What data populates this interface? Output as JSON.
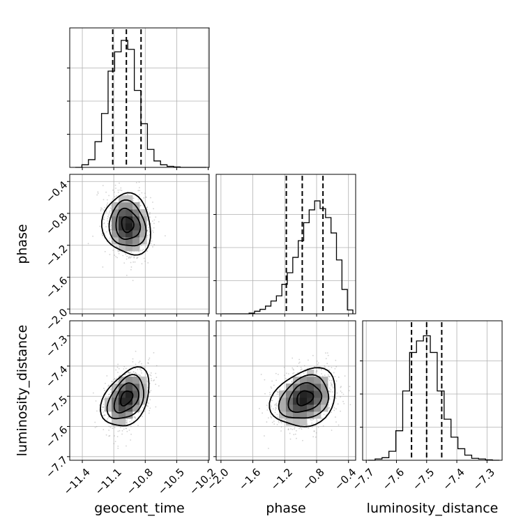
{
  "chart_data": {
    "type": "corner",
    "parameters": [
      "geocent_time",
      "phase",
      "luminosity_distance"
    ],
    "axis_labels": {
      "geocent_time": "geocent_time",
      "phase": "phase",
      "luminosity_distance": "luminosity_distance"
    },
    "ranges": {
      "geocent_time": [
        -11.52,
        -10.19
      ],
      "phase": [
        -2.06,
        -0.31
      ],
      "luminosity_distance": [
        -7.712,
        -7.25
      ]
    },
    "ticks": {
      "geocent_time": {
        "values": [
          -11.4,
          -11.1,
          -10.8,
          -10.5,
          -10.2
        ],
        "labels": [
          "−11.4",
          "−11.1",
          "−10.8",
          "−10.5",
          "−10.2"
        ]
      },
      "phase": {
        "values": [
          -2.0,
          -1.6,
          -1.2,
          -0.8,
          -0.4
        ],
        "labels": [
          "−2.0",
          "−1.6",
          "−1.2",
          "−0.8",
          "−0.4"
        ]
      },
      "luminosity_distance": {
        "values": [
          -7.7,
          -7.6,
          -7.5,
          -7.4,
          -7.3
        ],
        "labels": [
          "−7.7",
          "−7.6",
          "−7.5",
          "−7.4",
          "−7.3"
        ]
      }
    },
    "quantiles": {
      "geocent_time": [
        -11.11,
        -10.98,
        -10.84
      ],
      "phase": [
        -1.18,
        -0.98,
        -0.72
      ],
      "luminosity_distance": [
        -7.55,
        -7.5,
        -7.45
      ]
    },
    "histograms": {
      "geocent_time": [
        0,
        0.02,
        0.06,
        0.2,
        0.42,
        0.75,
        0.9,
        0.99,
        0.92,
        0.6,
        0.34,
        0.14,
        0.05,
        0.02,
        0.008,
        0.003,
        0,
        0,
        0,
        0
      ],
      "phase": [
        0,
        0,
        0,
        0,
        0,
        0.005,
        0.02,
        0.035,
        0.06,
        0.1,
        0.14,
        0.23,
        0.32,
        0.44,
        0.57,
        0.71,
        0.81,
        0.88,
        0.82,
        0.75,
        0.63,
        0.42,
        0.19,
        0.03
      ],
      "luminosity_distance": [
        0,
        0.01,
        0.02,
        0.07,
        0.23,
        0.54,
        0.84,
        0.93,
        0.97,
        0.84,
        0.54,
        0.32,
        0.18,
        0.09,
        0.04,
        0.015,
        0.01,
        0.003,
        0
      ]
    },
    "posteriors_2d": [
      {
        "x": "geocent_time",
        "y": "phase",
        "mean": [
          -10.97,
          -0.94
        ],
        "std": [
          0.11,
          0.2
        ],
        "corr": -0.1
      },
      {
        "x": "geocent_time",
        "y": "luminosity_distance",
        "mean": [
          -10.98,
          -7.506
        ],
        "std": [
          0.11,
          0.05
        ],
        "corr": 0.35
      },
      {
        "x": "phase",
        "y": "luminosity_distance",
        "mean": [
          -0.95,
          -7.506
        ],
        "std": [
          0.2,
          0.05
        ],
        "corr": 0.3
      }
    ],
    "contour_levels": 4,
    "grid": true,
    "legend": false,
    "title": ""
  }
}
